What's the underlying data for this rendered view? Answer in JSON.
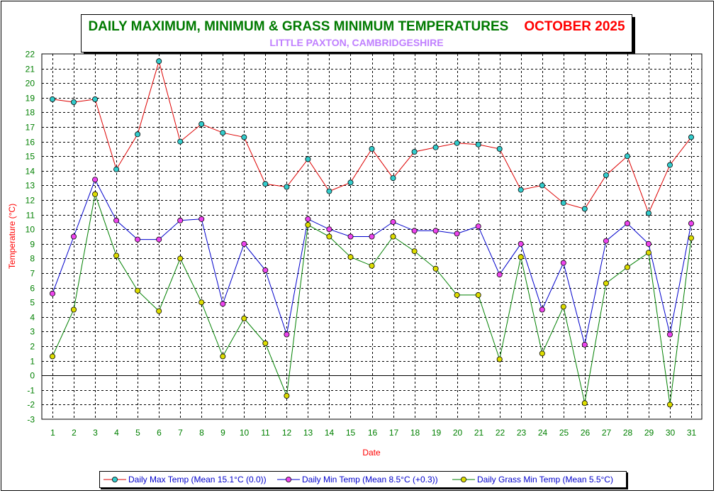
{
  "title": {
    "main": "DAILY MAXIMUM, MINIMUM & GRASS MINIMUM TEMPERATURES",
    "month": "OCTOBER 2025",
    "subtitle": "LITTLE PAXTON, CAMBRIDGESHIRE"
  },
  "colors": {
    "title": "#007a00",
    "month": "#ff0000",
    "subtitle": "#c080ff",
    "axis_labels": "#ff0000",
    "tick_labels": "#008000",
    "legend_text": "#0000cc"
  },
  "chart_data": {
    "type": "line",
    "title": "DAILY MAXIMUM, MINIMUM & GRASS MINIMUM TEMPERATURES",
    "xlabel": "Date",
    "ylabel": "Temperature (°C)",
    "ylim": [
      -3,
      22
    ],
    "xlim": [
      1,
      31
    ],
    "grid": true,
    "legend_position": "bottom",
    "x": [
      1,
      2,
      3,
      4,
      5,
      6,
      7,
      8,
      9,
      10,
      11,
      12,
      13,
      14,
      15,
      16,
      17,
      18,
      19,
      20,
      21,
      22,
      23,
      24,
      25,
      26,
      27,
      28,
      29,
      30,
      31
    ],
    "y_ticks": [
      -3,
      -2,
      -1,
      0,
      1,
      2,
      3,
      4,
      5,
      6,
      7,
      8,
      9,
      10,
      11,
      12,
      13,
      14,
      15,
      16,
      17,
      18,
      19,
      20,
      21,
      22
    ],
    "series": [
      {
        "name": "Daily Max Temp (Mean 15.1°C (0.0))",
        "line_color": "#dd0000",
        "marker_color": "#33cccc",
        "values": [
          18.9,
          18.7,
          18.9,
          14.1,
          16.5,
          21.5,
          16.0,
          17.2,
          16.6,
          16.3,
          13.1,
          12.9,
          14.8,
          12.6,
          13.2,
          15.5,
          13.5,
          15.3,
          15.6,
          15.9,
          15.8,
          15.5,
          12.7,
          13.0,
          11.8,
          11.4,
          13.7,
          15.0,
          11.1,
          14.4,
          16.3
        ]
      },
      {
        "name": "Daily Min Temp (Mean 8.5°C (+0.3))",
        "line_color": "#0000cc",
        "marker_color": "#ee44ee",
        "values": [
          5.6,
          9.5,
          13.4,
          10.6,
          9.3,
          9.3,
          10.6,
          10.7,
          4.9,
          9.0,
          7.2,
          2.8,
          10.7,
          10.0,
          9.5,
          9.5,
          10.5,
          9.9,
          9.9,
          9.7,
          10.2,
          6.9,
          9.0,
          4.5,
          7.7,
          2.1,
          9.2,
          10.4,
          9.0,
          2.8,
          10.4
        ]
      },
      {
        "name": "Daily Grass Min Temp (Mean 5.5°C)",
        "line_color": "#008000",
        "marker_color": "#dddd00",
        "values": [
          1.3,
          4.5,
          12.4,
          8.2,
          5.8,
          4.4,
          8.0,
          5.0,
          1.3,
          3.9,
          2.2,
          -1.4,
          10.3,
          9.5,
          8.1,
          7.5,
          9.5,
          8.5,
          7.3,
          5.5,
          5.5,
          1.1,
          8.1,
          1.5,
          4.7,
          -1.9,
          6.3,
          7.4,
          8.4,
          -2.0,
          9.4
        ]
      }
    ]
  }
}
